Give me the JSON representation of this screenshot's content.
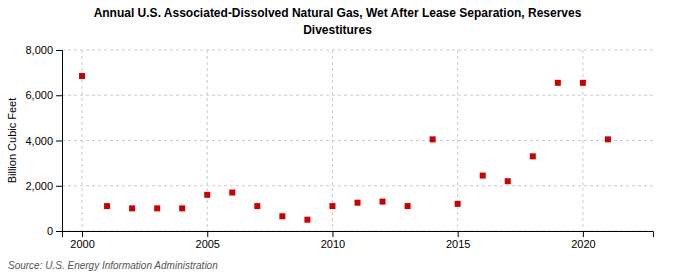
{
  "chart_data": {
    "type": "scatter",
    "title": "Annual U.S. Associated-Dissolved Natural Gas, Wet After Lease Separation, Reserves",
    "subtitle": "Divestitures",
    "y_label": "Billion Cubic Feet",
    "source": "Source: U.S. Energy Information Administration",
    "x": [
      2000,
      2001,
      2002,
      2003,
      2004,
      2005,
      2006,
      2007,
      2008,
      2009,
      2010,
      2011,
      2012,
      2013,
      2014,
      2015,
      2016,
      2017,
      2018,
      2019,
      2020,
      2021
    ],
    "values": [
      6850,
      1100,
      1000,
      1000,
      1000,
      1600,
      1700,
      1100,
      650,
      500,
      1100,
      1250,
      1300,
      1100,
      4050,
      1200,
      2450,
      2200,
      3300,
      6550,
      6550,
      4050
    ],
    "color": "#cc0000",
    "marker": "square",
    "xlim": [
      1999.2,
      2022.8
    ],
    "xticks": [
      2000,
      2005,
      2010,
      2015,
      2020
    ],
    "ylim": [
      0,
      8000
    ],
    "yticks": [
      0,
      {
        "value": 2000,
        "label": "2,000"
      },
      {
        "value": 4000,
        "label": "4,000"
      },
      {
        "value": 6000,
        "label": "6,000"
      },
      {
        "value": 8000,
        "label": "8,000"
      }
    ],
    "grid": true
  }
}
